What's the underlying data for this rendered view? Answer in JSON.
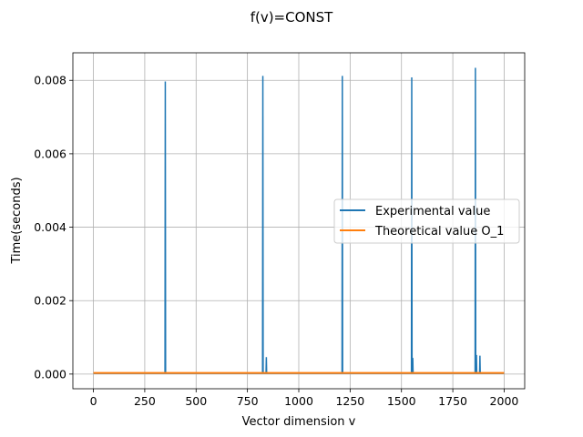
{
  "chart_data": {
    "type": "line",
    "title": "f(v)=CONST",
    "xlabel": "Vector dimension v",
    "ylabel": "Time(seconds)",
    "xlim": [
      -100,
      2100
    ],
    "ylim": [
      -0.0004,
      0.00875
    ],
    "xticks": [
      0,
      250,
      500,
      750,
      1000,
      1250,
      1500,
      1750,
      2000
    ],
    "xtick_labels": [
      "0",
      "250",
      "500",
      "750",
      "1000",
      "1250",
      "1500",
      "1750",
      "2000"
    ],
    "yticks": [
      0.0,
      0.002,
      0.004,
      0.006,
      0.008
    ],
    "ytick_labels": [
      "0.000",
      "0.002",
      "0.004",
      "0.006",
      "0.008"
    ],
    "grid": true,
    "legend_position": "center-right",
    "series": [
      {
        "name": "Experimental value",
        "color": "#1f77b4",
        "baseline": 2e-05,
        "spikes": [
          {
            "x": 350,
            "y": 0.00797
          },
          {
            "x": 825,
            "y": 0.00812
          },
          {
            "x": 842,
            "y": 0.00046
          },
          {
            "x": 1212,
            "y": 0.00812
          },
          {
            "x": 1550,
            "y": 0.00808
          },
          {
            "x": 1555,
            "y": 0.00044
          },
          {
            "x": 1860,
            "y": 0.00834
          },
          {
            "x": 1865,
            "y": 0.00052
          },
          {
            "x": 1882,
            "y": 0.0005
          }
        ],
        "x_range": [
          0,
          2000
        ]
      },
      {
        "name": "Theoretical value O_1",
        "color": "#ff7f0e",
        "x": [
          0,
          2000
        ],
        "y": [
          3e-05,
          3e-05
        ]
      }
    ]
  }
}
